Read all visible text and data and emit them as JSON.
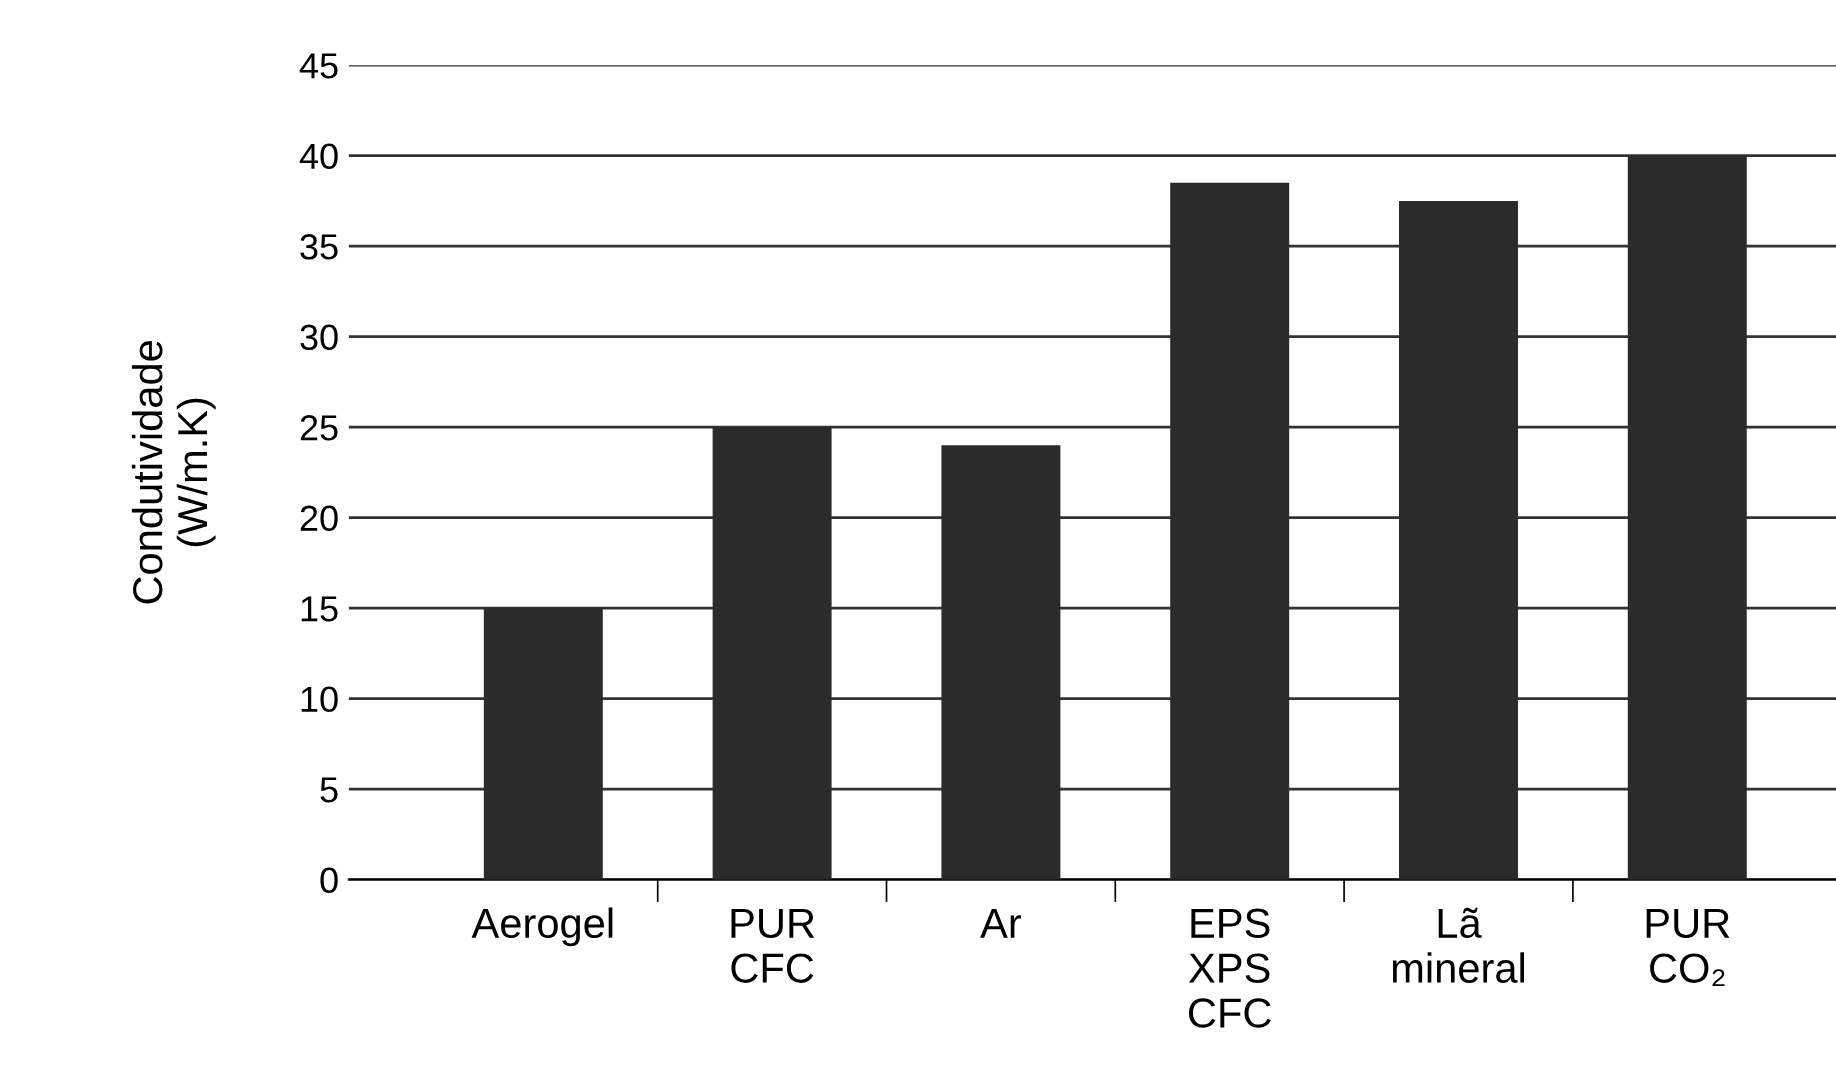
{
  "chart_data": {
    "type": "bar",
    "categories": [
      "Aerogel",
      "PUR\nCFC",
      "Ar",
      "EPS\nXPS\nCFC",
      "Lã\nmineral",
      "PUR\nCO₂"
    ],
    "values": [
      15,
      25,
      24,
      38.5,
      37.5,
      40
    ],
    "color": "#2b2b2b",
    "ylabel": "Condutividade\n(W/m.K)",
    "ylim": [
      0,
      45
    ],
    "yticks": [
      0,
      5,
      10,
      15,
      20,
      25,
      30,
      35,
      40,
      45
    ],
    "grid": "y"
  }
}
